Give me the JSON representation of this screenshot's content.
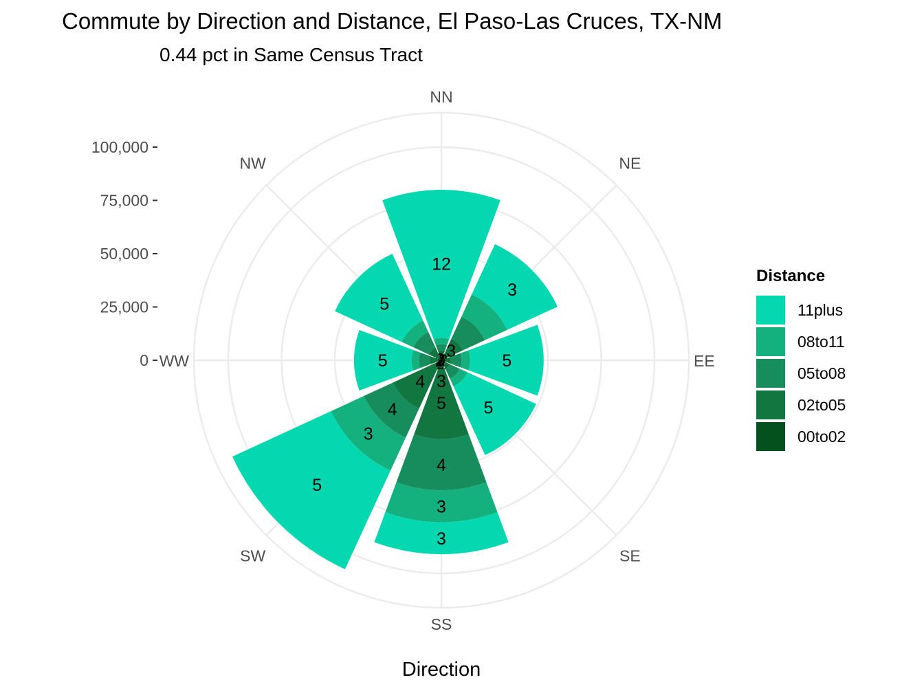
{
  "title": "Commute by Direction and Distance, El Paso-Las Cruces, TX-NM",
  "subtitle": "0.44 pct in Same Census Tract",
  "chart_data": {
    "type": "polar-stacked-bar",
    "xlabel": "Direction",
    "ylabel": "",
    "ylim": [
      0,
      100000
    ],
    "y_ticks": [
      0,
      25000,
      50000,
      75000,
      100000
    ],
    "y_tick_labels": [
      "0",
      "25,000",
      "50,000",
      "75,000",
      "100,000"
    ],
    "grid": true,
    "legend_title": "Distance",
    "legend_position": "right",
    "categories": [
      "NN",
      "NE",
      "EE",
      "SE",
      "SS",
      "SW",
      "WW",
      "NW"
    ],
    "series": [
      {
        "name": "00to02",
        "color": "#05501f",
        "values": [
          1500,
          2000,
          1500,
          1500,
          3000,
          3000,
          1500,
          1500
        ]
      },
      {
        "name": "02to05",
        "color": "#117640",
        "values": [
          3000,
          9000,
          3000,
          3000,
          34000,
          22000,
          4000,
          5000
        ]
      },
      {
        "name": "05to08",
        "color": "#178c5c",
        "values": [
          3000,
          11500,
          5000,
          5000,
          24000,
          15000,
          5000,
          8000
        ]
      },
      {
        "name": "08to11",
        "color": "#14b07e",
        "values": [
          3000,
          11500,
          4000,
          4000,
          15000,
          17000,
          3500,
          6000
        ]
      },
      {
        "name": "11plus",
        "color": "#05d8b0",
        "values": [
          69500,
          26000,
          34500,
          35500,
          15000,
          51000,
          27000,
          34500
        ]
      }
    ],
    "labels": [
      [
        "",
        "",
        "2",
        "",
        "2",
        "2",
        "2",
        "2"
      ],
      [
        "",
        "3",
        "",
        "",
        "5",
        "4",
        "",
        ""
      ],
      [
        "",
        "",
        "",
        "",
        "4",
        "4",
        "",
        ""
      ],
      [
        "",
        "",
        "",
        "",
        "3",
        "3",
        "",
        ""
      ],
      [
        "12",
        "3",
        "5",
        "5",
        "3",
        "5",
        "5",
        "5"
      ]
    ],
    "center_label": "3"
  },
  "legend": [
    {
      "label": "11plus",
      "color": "#05d8b0"
    },
    {
      "label": "08to11",
      "color": "#14b07e"
    },
    {
      "label": "05to08",
      "color": "#178c5c"
    },
    {
      "label": "02to05",
      "color": "#117640"
    },
    {
      "label": "00to02",
      "color": "#05501f"
    }
  ]
}
